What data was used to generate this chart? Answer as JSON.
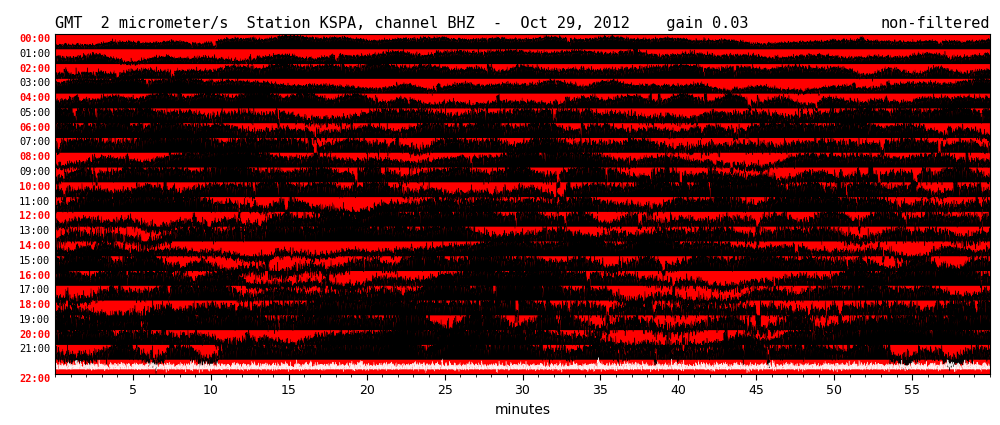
{
  "title_left": "GMT  2 micrometer/s  Station KSPA, channel BHZ  -  Oct 29, 2012    gain 0.03",
  "title_right": "non-filtered",
  "xlabel": "minutes",
  "background_color": "#ff0000",
  "fig_bg": "#ffffff",
  "hours": [
    "00:00",
    "01:00",
    "02:00",
    "03:00",
    "04:00",
    "05:00",
    "06:00",
    "07:00",
    "08:00",
    "09:00",
    "10:00",
    "11:00",
    "12:00",
    "13:00",
    "14:00",
    "15:00",
    "16:00",
    "17:00",
    "18:00",
    "19:00",
    "20:00",
    "21:00",
    "22:00"
  ],
  "red_hours": [
    0,
    2,
    4,
    6,
    8,
    10,
    12,
    14,
    16,
    18,
    20,
    22
  ],
  "n_hours": 23,
  "x_ticks": [
    5,
    10,
    15,
    20,
    25,
    30,
    35,
    40,
    45,
    50,
    55
  ],
  "title_fontsize": 11,
  "xlabel_fontsize": 10,
  "tick_fontsize": 9,
  "hour_label_fontsize": 7.5,
  "seed": 12345
}
